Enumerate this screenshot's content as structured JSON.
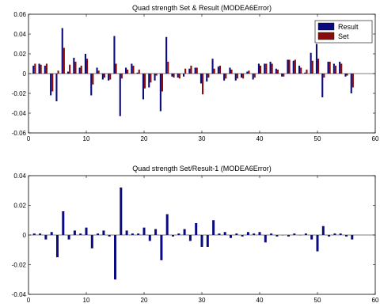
{
  "chart_data": [
    {
      "type": "bar",
      "title": "Quad strength Set & Result (MODEA6Error)",
      "xlabel": "",
      "ylabel": "",
      "xlim": [
        0,
        60
      ],
      "ylim": [
        -0.06,
        0.06
      ],
      "xticks": [
        0,
        10,
        20,
        30,
        40,
        50,
        60
      ],
      "yticks": [
        -0.06,
        -0.04,
        -0.02,
        0,
        0.02,
        0.04,
        0.06
      ],
      "ytick_labels": [
        "-0.06",
        "-0.04",
        "-0.02",
        "0",
        "0.02",
        "0.04",
        "0.06"
      ],
      "legend_position": "top-right",
      "x": [
        1,
        2,
        3,
        4,
        5,
        6,
        7,
        8,
        9,
        10,
        11,
        12,
        13,
        14,
        15,
        16,
        17,
        18,
        19,
        20,
        21,
        22,
        23,
        24,
        25,
        26,
        27,
        28,
        29,
        30,
        31,
        32,
        33,
        34,
        35,
        36,
        37,
        38,
        39,
        40,
        41,
        42,
        43,
        44,
        45,
        46,
        47,
        48,
        49,
        50,
        51,
        52,
        53,
        54,
        55,
        56
      ],
      "series": [
        {
          "name": "Result",
          "color": "#0b0b80",
          "values": [
            0.008,
            0.01,
            0.008,
            -0.022,
            -0.028,
            0.046,
            0.002,
            0.016,
            0.006,
            0.02,
            -0.022,
            0.006,
            -0.006,
            -0.007,
            0.038,
            -0.043,
            0.006,
            0.01,
            0.001,
            -0.026,
            -0.014,
            -0.007,
            -0.038,
            0.037,
            -0.003,
            -0.004,
            -0.003,
            0.005,
            0.006,
            -0.01,
            -0.008,
            0.015,
            0.007,
            -0.007,
            0.006,
            -0.007,
            -0.004,
            0.002,
            -0.006,
            0.01,
            0.01,
            0.012,
            0.005,
            -0.003,
            0.014,
            0.013,
            0.008,
            0.001,
            0.021,
            0.03,
            -0.024,
            0.012,
            0.01,
            0.012,
            -0.003,
            -0.02
          ]
        },
        {
          "name": "Set",
          "color": "#8b0a0a",
          "values": [
            0.01,
            0.009,
            0.01,
            -0.018,
            0.003,
            0.026,
            0.009,
            0.012,
            0.008,
            0.015,
            -0.011,
            0.003,
            -0.004,
            -0.006,
            0.01,
            -0.005,
            0.004,
            0.008,
            0.004,
            -0.015,
            -0.009,
            -0.002,
            -0.018,
            0.012,
            -0.004,
            -0.005,
            0.005,
            0.008,
            0.006,
            -0.021,
            -0.004,
            0.005,
            0.008,
            -0.005,
            0.004,
            -0.005,
            -0.005,
            0.003,
            -0.004,
            0.008,
            0.01,
            0.01,
            0.004,
            -0.003,
            0.014,
            0.014,
            0.006,
            0.004,
            0.013,
            0.015,
            -0.004,
            0.012,
            0.008,
            0.01,
            -0.002,
            -0.014
          ]
        }
      ]
    },
    {
      "type": "bar",
      "title": "Quad strength Set/Result-1 (MODEA6Error)",
      "xlabel": "",
      "ylabel": "",
      "xlim": [
        0,
        60
      ],
      "ylim": [
        -0.04,
        0.04
      ],
      "xticks": [
        0,
        10,
        20,
        30,
        40,
        50,
        60
      ],
      "yticks": [
        -0.04,
        -0.02,
        0,
        0.02,
        0.04
      ],
      "ytick_labels": [
        "-0.04",
        "-0.02",
        "0",
        "0.02",
        "0.04"
      ],
      "x": [
        1,
        2,
        3,
        4,
        5,
        6,
        7,
        8,
        9,
        10,
        11,
        12,
        13,
        14,
        15,
        16,
        17,
        18,
        19,
        20,
        21,
        22,
        23,
        24,
        25,
        26,
        27,
        28,
        29,
        30,
        31,
        32,
        33,
        34,
        35,
        36,
        37,
        38,
        39,
        40,
        41,
        42,
        43,
        44,
        45,
        46,
        47,
        48,
        49,
        50,
        51,
        52,
        53,
        54,
        55,
        56
      ],
      "series": [
        {
          "color": "#0b0b80",
          "values": [
            0.001,
            0.001,
            -0.003,
            0.002,
            -0.015,
            0.016,
            -0.003,
            0.003,
            0.001,
            0.005,
            -0.009,
            0.001,
            0.003,
            -0.001,
            -0.03,
            0.032,
            0.003,
            0.001,
            0.001,
            0.005,
            -0.004,
            0.004,
            -0.017,
            0.014,
            -0.001,
            0.001,
            0.004,
            -0.004,
            0.008,
            -0.008,
            -0.008,
            0.01,
            0.001,
            0.002,
            -0.002,
            0.001,
            -0.001,
            0.002,
            0.001,
            0.002,
            -0.005,
            0.001,
            -0.001,
            0.0,
            -0.001,
            0.001,
            0.0,
            0.001,
            -0.003,
            -0.011,
            0.006,
            -0.001,
            0.001,
            0.001,
            -0.001,
            -0.003
          ]
        }
      ]
    }
  ]
}
